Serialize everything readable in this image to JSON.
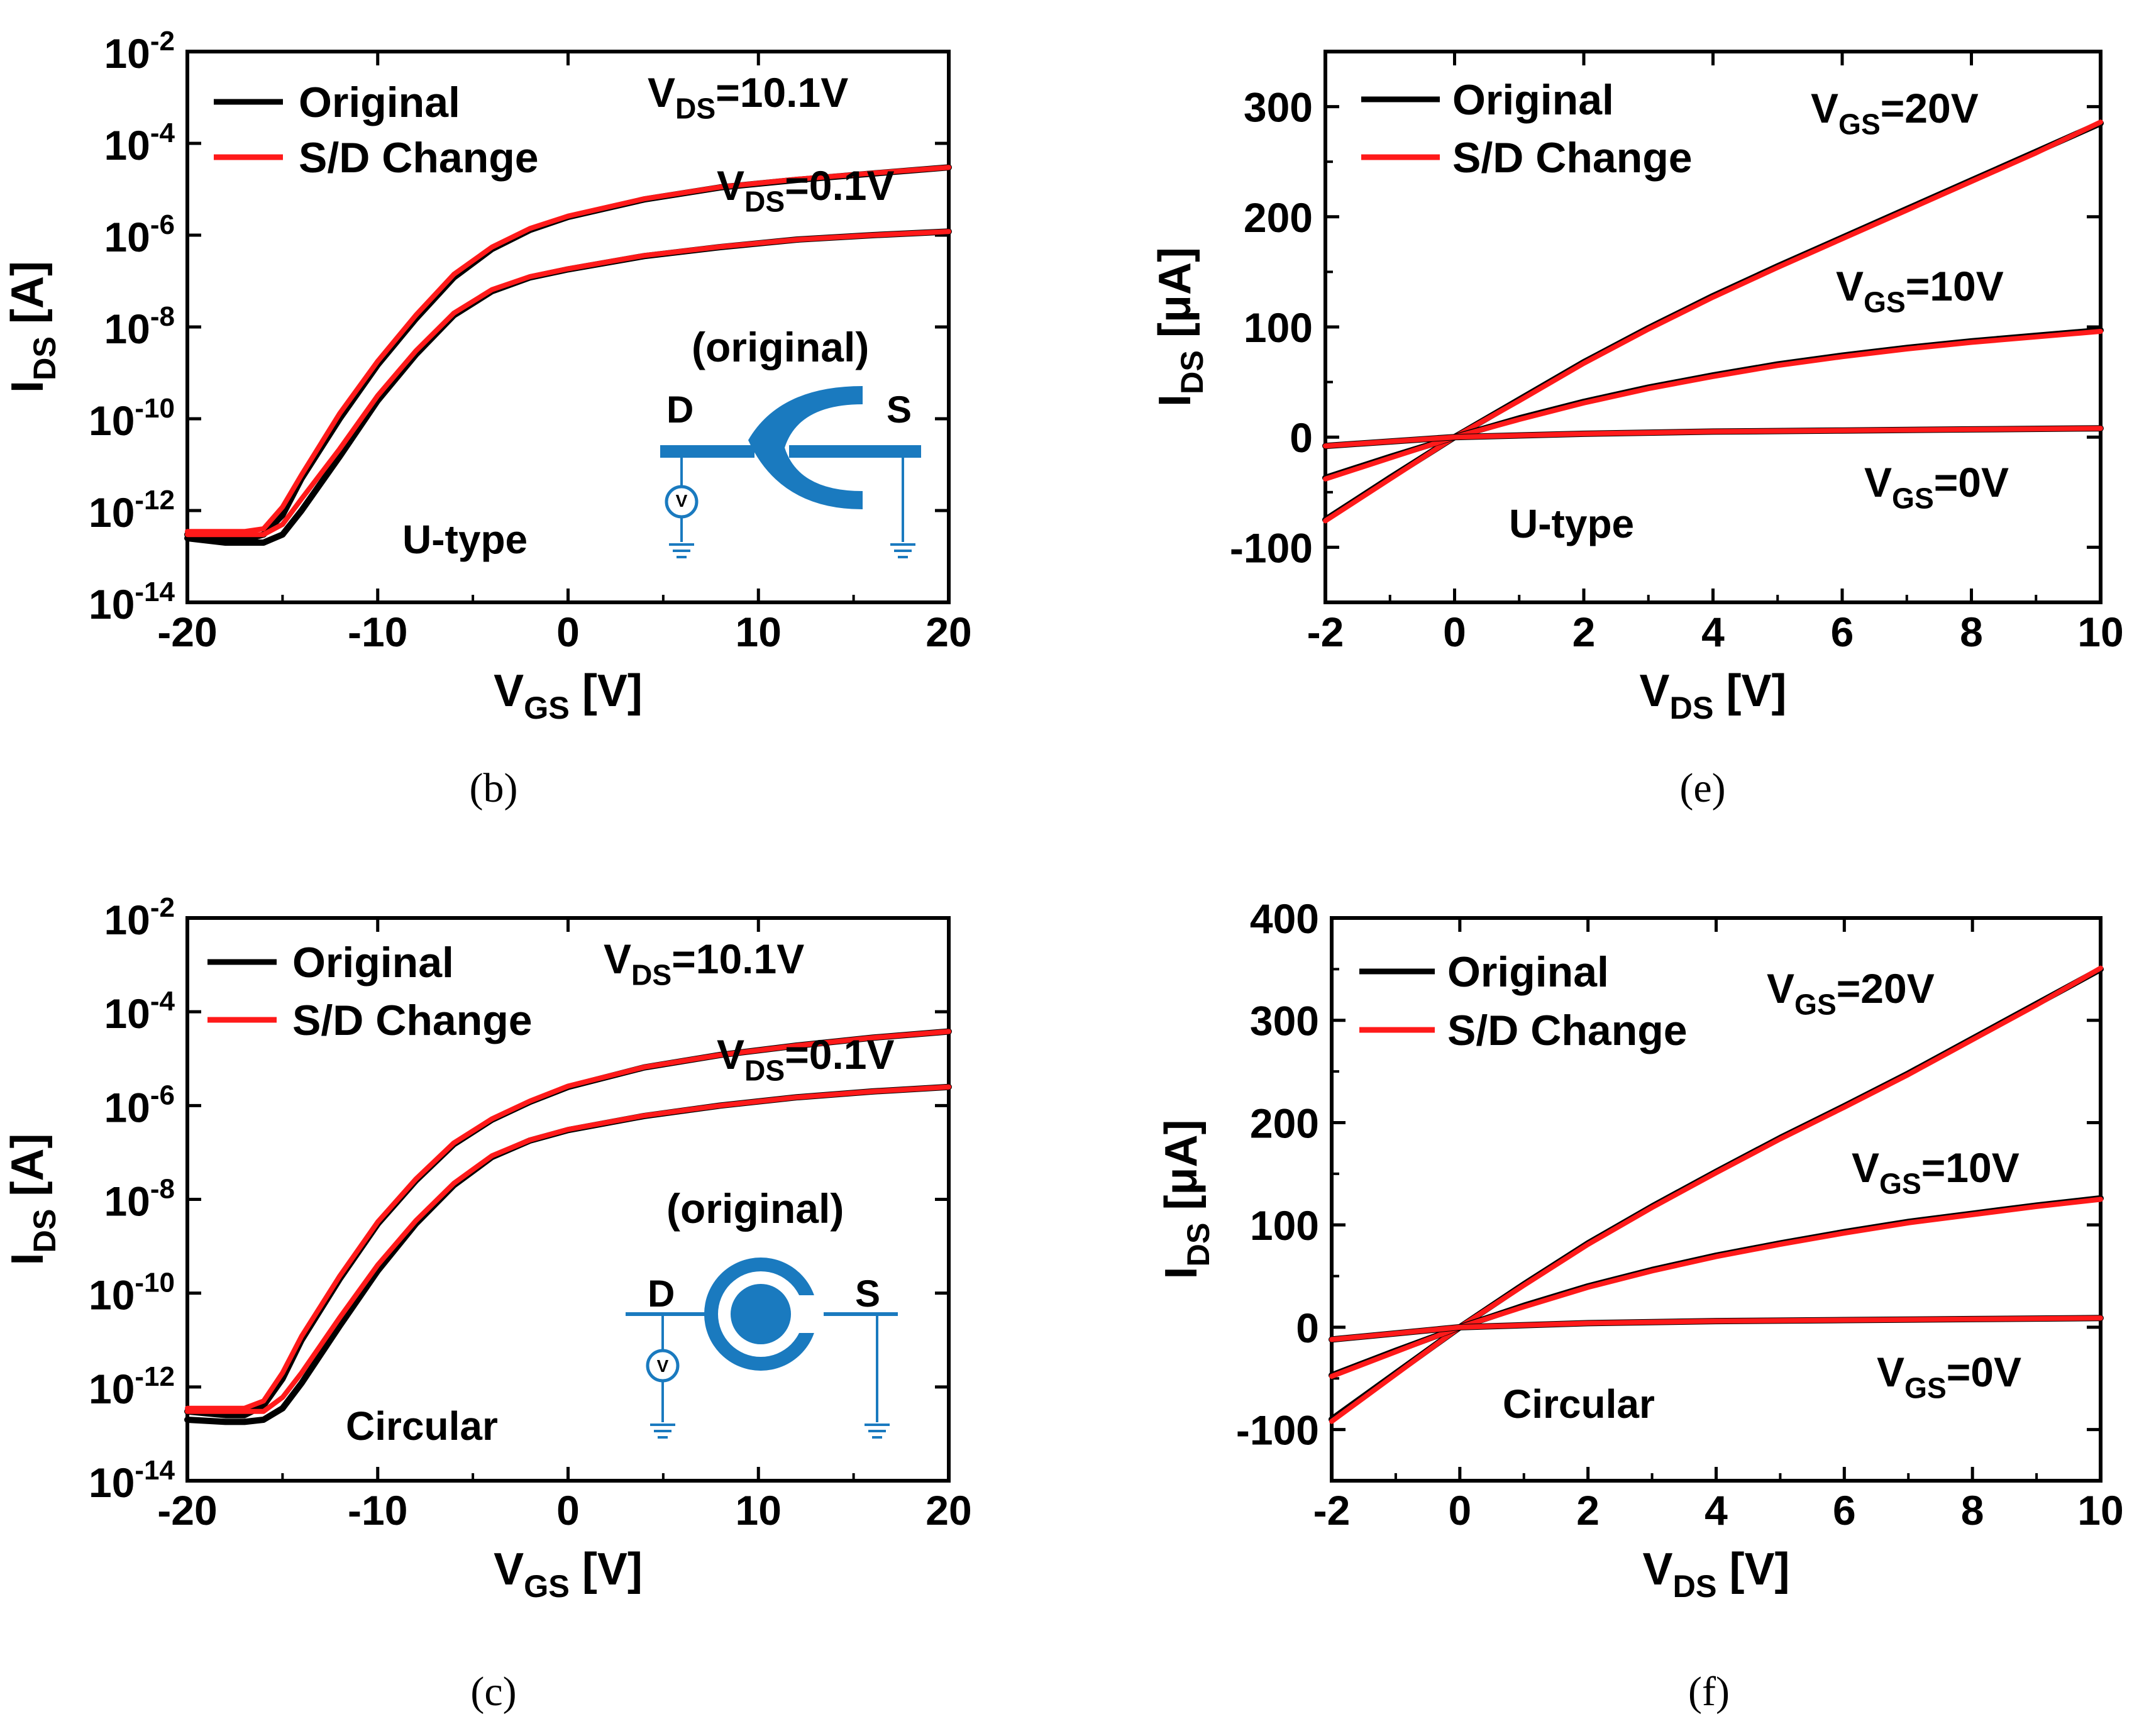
{
  "legend": {
    "original": "Original",
    "sd_change": "S/D Change"
  },
  "colors": {
    "original": "#000000",
    "sd_change": "#ff1a1a",
    "inset": "#1a7abf"
  },
  "chart_data": [
    {
      "id": "b",
      "type": "line",
      "caption": "(b)",
      "xscale": "linear",
      "yscale": "log",
      "xlim": [
        -20,
        20
      ],
      "ylim": [
        1e-14,
        0.01
      ],
      "xticks": [
        -20,
        -10,
        0,
        10,
        20
      ],
      "yticks": [
        -14,
        -12,
        -10,
        -8,
        -6,
        -4,
        -2
      ],
      "xlabel": {
        "main": "V",
        "sub": "GS",
        "rest": " [V]"
      },
      "ylabel": {
        "main": "I",
        "sub": "DS",
        "rest": " [A]"
      },
      "annotations": [
        {
          "main": "V",
          "sub": "DS",
          "rest": "=10.1V"
        },
        {
          "main": "V",
          "sub": "DS",
          "rest": "=0.1V"
        },
        {
          "text": "U-type"
        },
        {
          "text": "(original)"
        },
        {
          "text": "D"
        },
        {
          "text": "S"
        },
        {
          "text": "V"
        }
      ],
      "series": [
        {
          "name": "Original",
          "vds": "10.1V",
          "x": [
            -20,
            -18,
            -17,
            -16,
            -15,
            -14,
            -12,
            -10,
            -8,
            -6,
            -4,
            -2,
            0,
            4,
            8,
            12,
            16,
            20
          ],
          "y": [
            3e-13,
            2.5e-13,
            2.3e-13,
            3e-13,
            8e-13,
            5e-12,
            1e-10,
            1.5e-09,
            1.5e-08,
            1.2e-07,
            5e-07,
            1.3e-06,
            2.5e-06,
            6e-06,
            1.1e-05,
            1.6e-05,
            2.2e-05,
            3e-05
          ]
        },
        {
          "name": "S/D Change",
          "vds": "10.1V",
          "x": [
            -20,
            -18,
            -17,
            -16,
            -15,
            -14,
            -12,
            -10,
            -8,
            -6,
            -4,
            -2,
            0,
            4,
            8,
            12,
            16,
            20
          ],
          "y": [
            3.5e-13,
            3.5e-13,
            3.5e-13,
            4e-13,
            1.2e-12,
            6e-12,
            1.3e-10,
            1.8e-09,
            1.8e-08,
            1.4e-07,
            5.5e-07,
            1.4e-06,
            2.6e-06,
            6.2e-06,
            1.12e-05,
            1.65e-05,
            2.25e-05,
            3e-05
          ]
        },
        {
          "name": "Original",
          "vds": "0.1V",
          "x": [
            -20,
            -18,
            -17,
            -16,
            -15,
            -14,
            -12,
            -10,
            -8,
            -6,
            -4,
            -2,
            0,
            4,
            8,
            12,
            16,
            20
          ],
          "y": [
            2.5e-13,
            2e-13,
            2e-13,
            2e-13,
            3e-13,
            1e-12,
            1.5e-11,
            2.5e-10,
            2.5e-09,
            1.8e-08,
            6e-08,
            1.2e-07,
            1.8e-07,
            3.5e-07,
            5.5e-07,
            8e-07,
            1e-06,
            1.2e-06
          ]
        },
        {
          "name": "S/D Change",
          "vds": "0.1V",
          "x": [
            -20,
            -18,
            -17,
            -16,
            -15,
            -14,
            -12,
            -10,
            -8,
            -6,
            -4,
            -2,
            0,
            4,
            8,
            12,
            16,
            20
          ],
          "y": [
            3e-13,
            3e-13,
            3e-13,
            3e-13,
            5e-13,
            1.8e-12,
            2.2e-11,
            3.2e-10,
            3e-09,
            2e-08,
            6.5e-08,
            1.25e-07,
            1.85e-07,
            3.6e-07,
            5.6e-07,
            8e-07,
            1e-06,
            1.2e-06
          ]
        }
      ]
    },
    {
      "id": "e",
      "type": "line",
      "caption": "(e)",
      "xscale": "linear",
      "yscale": "linear",
      "xlim": [
        -2,
        10
      ],
      "ylim": [
        -150,
        350
      ],
      "xticks": [
        -2,
        0,
        2,
        4,
        6,
        8,
        10
      ],
      "yticks": [
        -100,
        0,
        100,
        200,
        300
      ],
      "xlabel": {
        "main": "V",
        "sub": "DS",
        "rest": " [V]"
      },
      "ylabel": {
        "main": "I",
        "sub": "DS",
        "rest": " [μA]"
      },
      "annotations": [
        {
          "main": "V",
          "sub": "GS",
          "rest": "=20V"
        },
        {
          "main": "V",
          "sub": "GS",
          "rest": "=10V"
        },
        {
          "main": "V",
          "sub": "GS",
          "rest": "=0V"
        },
        {
          "text": "U-type"
        }
      ],
      "series": [
        {
          "name": "Original",
          "vgs": "20V",
          "x": [
            -2,
            -1,
            0,
            1,
            2,
            3,
            4,
            5,
            6,
            7,
            8,
            9,
            10
          ],
          "y": [
            -75,
            -37,
            0,
            34,
            68,
            99,
            128,
            155,
            181,
            207,
            233,
            259,
            285
          ]
        },
        {
          "name": "S/D Change",
          "vgs": "20V",
          "x": [
            -2,
            -1,
            0,
            1,
            2,
            3,
            4,
            5,
            6,
            7,
            8,
            9,
            10
          ],
          "y": [
            -76,
            -38,
            0,
            33,
            67,
            98,
            127,
            154,
            180,
            206,
            232,
            258,
            286
          ]
        },
        {
          "name": "Original",
          "vgs": "10V",
          "x": [
            -2,
            -1,
            0,
            1,
            2,
            3,
            4,
            5,
            6,
            7,
            8,
            9,
            10
          ],
          "y": [
            -37,
            -18,
            0,
            17,
            32,
            45,
            56,
            66,
            74,
            81,
            87,
            92,
            97
          ]
        },
        {
          "name": "S/D Change",
          "vgs": "10V",
          "x": [
            -2,
            -1,
            0,
            1,
            2,
            3,
            4,
            5,
            6,
            7,
            8,
            9,
            10
          ],
          "y": [
            -38,
            -19,
            0,
            16,
            31,
            44,
            55,
            65,
            73,
            80,
            86,
            91,
            96
          ]
        },
        {
          "name": "Original",
          "vgs": "0V",
          "x": [
            -2,
            0,
            2,
            4,
            6,
            8,
            10
          ],
          "y": [
            -8,
            0,
            3,
            5,
            6,
            7,
            8
          ]
        },
        {
          "name": "S/D Change",
          "vgs": "0V",
          "x": [
            -2,
            0,
            2,
            4,
            6,
            8,
            10
          ],
          "y": [
            -8,
            0,
            3,
            5,
            6,
            7,
            8
          ]
        }
      ]
    },
    {
      "id": "c",
      "type": "line",
      "caption": "(c)",
      "xscale": "linear",
      "yscale": "log",
      "xlim": [
        -20,
        20
      ],
      "ylim": [
        1e-14,
        0.01
      ],
      "xticks": [
        -20,
        -10,
        0,
        10,
        20
      ],
      "yticks": [
        -14,
        -12,
        -10,
        -8,
        -6,
        -4,
        -2
      ],
      "xlabel": {
        "main": "V",
        "sub": "GS",
        "rest": " [V]"
      },
      "ylabel": {
        "main": "I",
        "sub": "DS",
        "rest": " [A]"
      },
      "annotations": [
        {
          "main": "V",
          "sub": "DS",
          "rest": "=10.1V"
        },
        {
          "main": "V",
          "sub": "DS",
          "rest": "=0.1V"
        },
        {
          "text": "Circular"
        },
        {
          "text": "(original)"
        },
        {
          "text": "D"
        },
        {
          "text": "S"
        },
        {
          "text": "V"
        }
      ],
      "series": [
        {
          "name": "Original",
          "vds": "10.1V",
          "x": [
            -20,
            -18,
            -17,
            -16,
            -15,
            -14,
            -12,
            -10,
            -8,
            -6,
            -4,
            -2,
            0,
            4,
            8,
            12,
            16,
            20
          ],
          "y": [
            3e-13,
            2.5e-13,
            2.5e-13,
            4e-13,
            1.5e-12,
            1e-11,
            2e-10,
            3e-09,
            2.5e-08,
            1.5e-07,
            5e-07,
            1.2e-06,
            2.5e-06,
            6.5e-06,
            1.2e-05,
            1.9e-05,
            2.8e-05,
            3.8e-05
          ]
        },
        {
          "name": "S/D Change",
          "vds": "10.1V",
          "x": [
            -20,
            -18,
            -17,
            -16,
            -15,
            -14,
            -12,
            -10,
            -8,
            -6,
            -4,
            -2,
            0,
            4,
            8,
            12,
            16,
            20
          ],
          "y": [
            3.5e-13,
            3.5e-13,
            3.5e-13,
            5e-13,
            2e-12,
            1.2e-11,
            2.3e-10,
            3.3e-09,
            2.7e-08,
            1.6e-07,
            5.2e-07,
            1.25e-06,
            2.6e-06,
            6.6e-06,
            1.2e-05,
            1.9e-05,
            2.8e-05,
            3.8e-05
          ]
        },
        {
          "name": "Original",
          "vds": "0.1V",
          "x": [
            -20,
            -18,
            -17,
            -16,
            -15,
            -14,
            -12,
            -10,
            -8,
            -6,
            -4,
            -2,
            0,
            4,
            8,
            12,
            16,
            20
          ],
          "y": [
            2e-13,
            1.8e-13,
            1.8e-13,
            2e-13,
            3.5e-13,
            1.2e-12,
            2e-11,
            3e-10,
            3e-09,
            2e-08,
            8e-08,
            1.8e-07,
            3e-07,
            6e-07,
            1e-06,
            1.5e-06,
            2e-06,
            2.5e-06
          ]
        },
        {
          "name": "S/D Change",
          "vds": "0.1V",
          "x": [
            -20,
            -18,
            -17,
            -16,
            -15,
            -14,
            -12,
            -10,
            -8,
            -6,
            -4,
            -2,
            0,
            4,
            8,
            12,
            16,
            20
          ],
          "y": [
            3e-13,
            3e-13,
            3e-13,
            3e-13,
            6e-13,
            2e-12,
            3e-11,
            4e-10,
            3.5e-09,
            2.2e-08,
            8.5e-08,
            1.85e-07,
            3.1e-07,
            6.1e-07,
            1e-06,
            1.5e-06,
            2e-06,
            2.5e-06
          ]
        }
      ]
    },
    {
      "id": "f",
      "type": "line",
      "caption": "(f)",
      "xscale": "linear",
      "yscale": "linear",
      "xlim": [
        -2,
        10
      ],
      "ylim": [
        -150,
        400
      ],
      "xticks": [
        -2,
        0,
        2,
        4,
        6,
        8,
        10
      ],
      "yticks": [
        -100,
        0,
        100,
        200,
        300,
        400
      ],
      "xlabel": {
        "main": "V",
        "sub": "DS",
        "rest": " [V]"
      },
      "ylabel": {
        "main": "I",
        "sub": "DS",
        "rest": " [μA]"
      },
      "annotations": [
        {
          "main": "V",
          "sub": "GS",
          "rest": "=20V"
        },
        {
          "main": "V",
          "sub": "GS",
          "rest": "=10V"
        },
        {
          "main": "V",
          "sub": "GS",
          "rest": "=0V"
        },
        {
          "text": "Circular"
        }
      ],
      "series": [
        {
          "name": "Original",
          "vgs": "20V",
          "x": [
            -2,
            -1,
            0,
            1,
            2,
            3,
            4,
            5,
            6,
            7,
            8,
            9,
            10
          ],
          "y": [
            -90,
            -45,
            0,
            42,
            82,
            118,
            152,
            185,
            216,
            248,
            282,
            316,
            350
          ]
        },
        {
          "name": "S/D Change",
          "vgs": "20V",
          "x": [
            -2,
            -1,
            0,
            1,
            2,
            3,
            4,
            5,
            6,
            7,
            8,
            9,
            10
          ],
          "y": [
            -92,
            -46,
            0,
            41,
            81,
            117,
            151,
            184,
            215,
            247,
            281,
            315,
            351
          ]
        },
        {
          "name": "Original",
          "vgs": "10V",
          "x": [
            -2,
            -1,
            0,
            1,
            2,
            3,
            4,
            5,
            6,
            7,
            8,
            9,
            10
          ],
          "y": [
            -47,
            -23,
            0,
            21,
            40,
            56,
            70,
            82,
            93,
            103,
            111,
            119,
            126
          ]
        },
        {
          "name": "S/D Change",
          "vgs": "10V",
          "x": [
            -2,
            -1,
            0,
            1,
            2,
            3,
            4,
            5,
            6,
            7,
            8,
            9,
            10
          ],
          "y": [
            -48,
            -24,
            0,
            20,
            39,
            55,
            69,
            81,
            92,
            102,
            110,
            118,
            125
          ]
        },
        {
          "name": "Original",
          "vgs": "0V",
          "x": [
            -2,
            0,
            2,
            4,
            6,
            8,
            10
          ],
          "y": [
            -12,
            0,
            4,
            6,
            7,
            8,
            9
          ]
        },
        {
          "name": "S/D Change",
          "vgs": "0V",
          "x": [
            -2,
            0,
            2,
            4,
            6,
            8,
            10
          ],
          "y": [
            -12,
            0,
            4,
            6,
            7,
            8,
            9
          ]
        }
      ]
    }
  ]
}
